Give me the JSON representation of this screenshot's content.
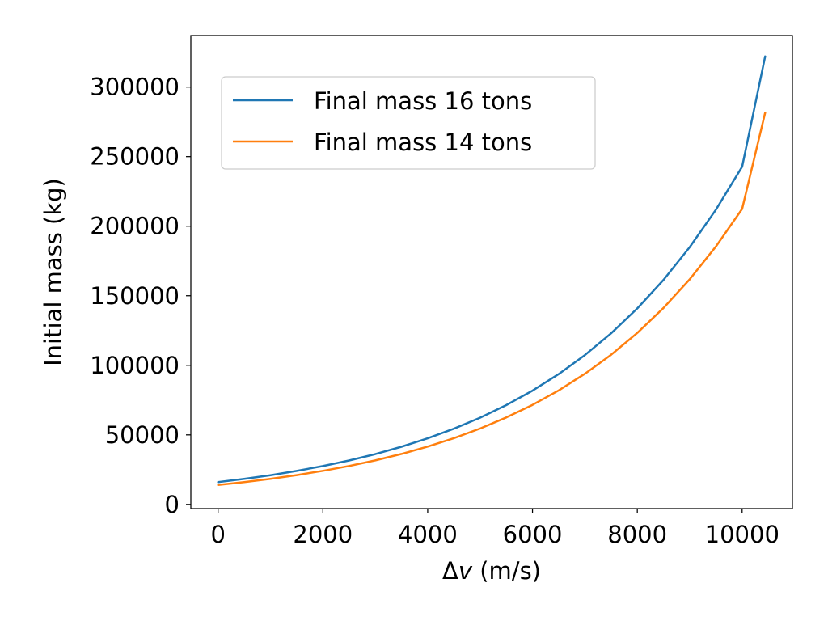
{
  "chart_data": {
    "type": "line",
    "title": "",
    "xlabel_prefix": "Δ",
    "xlabel_var": "v",
    "xlabel_suffix": " (m/s)",
    "ylabel": "Initial mass (kg)",
    "xlim": [
      -520,
      10960
    ],
    "ylim": [
      -3000,
      337000
    ],
    "xticks": [
      0,
      2000,
      4000,
      6000,
      8000,
      10000
    ],
    "yticks": [
      0,
      50000,
      100000,
      150000,
      200000,
      250000,
      300000
    ],
    "xtick_labels": [
      "0",
      "2000",
      "4000",
      "6000",
      "8000",
      "10000"
    ],
    "ytick_labels": [
      "0",
      "50000",
      "100000",
      "150000",
      "200000",
      "250000",
      "300000"
    ],
    "grid": false,
    "legend_position": "upper-left",
    "x": [
      0,
      500,
      1000,
      1500,
      2000,
      2500,
      3000,
      3500,
      4000,
      4500,
      5000,
      5500,
      6000,
      6500,
      7000,
      7500,
      8000,
      8500,
      9000,
      9500,
      10000,
      10440
    ],
    "series": [
      {
        "name": "Final mass 16 tons",
        "color": "#1f77b4",
        "values": [
          16000,
          18330,
          21000,
          24060,
          27560,
          31580,
          36180,
          41440,
          47480,
          54400,
          62320,
          71400,
          81790,
          93710,
          107360,
          123000,
          140910,
          161440,
          184950,
          211890,
          242750,
          322000
        ]
      },
      {
        "name": "Final mass 14 tons",
        "color": "#ff7f0e",
        "values": [
          14000,
          16040,
          18380,
          21050,
          24120,
          27630,
          31660,
          36270,
          41550,
          47600,
          54530,
          62480,
          71570,
          82000,
          93940,
          107630,
          123300,
          141260,
          161830,
          185400,
          212410,
          281600
        ]
      }
    ]
  }
}
